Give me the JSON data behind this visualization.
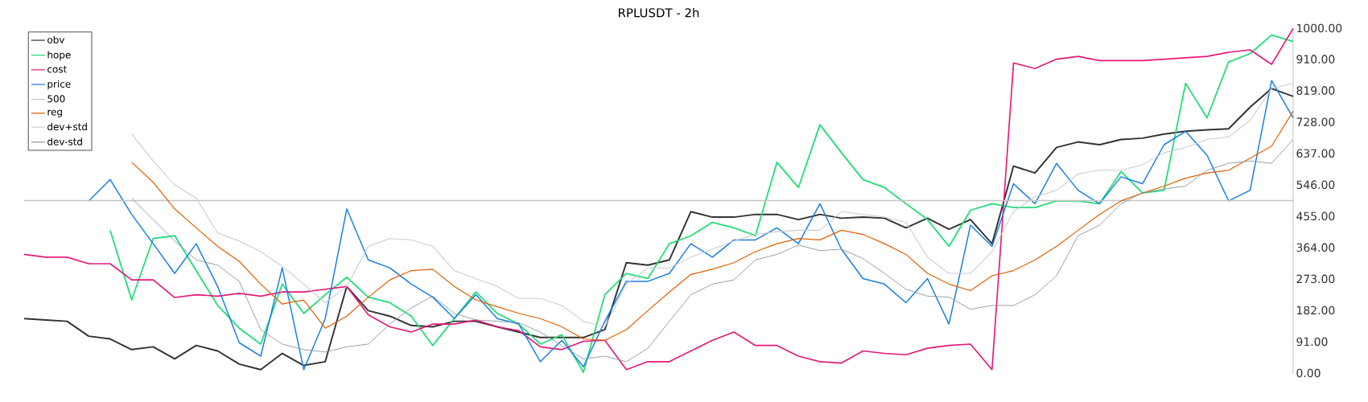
{
  "chart_data": {
    "type": "line",
    "title": "RPLUSDT - 2h",
    "categories": [
      null,
      null,
      null,
      null,
      null,
      null,
      null,
      null,
      null,
      null,
      null,
      null,
      null,
      null,
      null,
      null,
      null,
      null,
      null,
      null,
      null,
      null,
      null,
      null,
      null,
      null,
      null,
      null,
      null,
      null,
      null,
      null,
      null,
      null,
      null,
      null,
      null,
      null,
      null,
      null,
      null,
      null,
      null,
      null,
      null,
      null,
      null,
      null,
      null,
      null,
      null,
      null,
      null,
      null,
      null,
      null,
      null,
      null,
      null,
      null
    ],
    "series": [
      {
        "name": "obv",
        "color": "#333333",
        "values": [
          158,
          154,
          150,
          107,
          99,
          68,
          76,
          41,
          80,
          64,
          26,
          10,
          57,
          22,
          33,
          251,
          181,
          165,
          138,
          134,
          150,
          150,
          134,
          119,
          103,
          103,
          103,
          126,
          320,
          313,
          328,
          468,
          452,
          452,
          460,
          460,
          445,
          460,
          449,
          452,
          449,
          421,
          449,
          417,
          445,
          375,
          600,
          580,
          654,
          670,
          662,
          677,
          681,
          693,
          701,
          705,
          708,
          771,
          825,
          802
        ]
      },
      {
        "name": "hope",
        "color": "#22dd77",
        "values": [
          null,
          null,
          null,
          null,
          414,
          212,
          390,
          398,
          297,
          196,
          130,
          84,
          258,
          173,
          227,
          278,
          220,
          204,
          165,
          80,
          158,
          235,
          173,
          142,
          84,
          111,
          2,
          227,
          289,
          274,
          375,
          398,
          437,
          421,
          398,
          611,
          538,
          720,
          639,
          561,
          538,
          491,
          445,
          367,
          472,
          491,
          480,
          480,
          499,
          499,
          491,
          584,
          522,
          530,
          840,
          740,
          902,
          926,
          980,
          961
        ]
      },
      {
        "name": "cost",
        "color": "#e6197a",
        "values": [
          344,
          336,
          336,
          317,
          317,
          270,
          270,
          219,
          227,
          223,
          231,
          223,
          235,
          235,
          243,
          251,
          169,
          134,
          119,
          142,
          142,
          154,
          134,
          123,
          76,
          68,
          92,
          95,
          10,
          33,
          33,
          64,
          95,
          119,
          80,
          80,
          49,
          33,
          29,
          64,
          57,
          53,
          72,
          80,
          84,
          10,
          899,
          883,
          910,
          918,
          906,
          906,
          906,
          910,
          914,
          918,
          930,
          937,
          895,
          999
        ]
      },
      {
        "name": "price",
        "color": "#1a7fe0",
        "values": [
          null,
          null,
          null,
          499,
          561,
          460,
          375,
          289,
          375,
          251,
          88,
          49,
          305,
          10,
          158,
          476,
          328,
          305,
          258,
          220,
          158,
          227,
          158,
          142,
          33,
          95,
          18,
          150,
          266,
          266,
          289,
          375,
          336,
          386,
          386,
          421,
          375,
          491,
          359,
          274,
          258,
          204,
          274,
          142,
          429,
          367,
          549,
          491,
          608,
          530,
          491,
          569,
          549,
          662,
          701,
          631,
          499,
          530,
          848,
          740
        ]
      },
      {
        "name": "500",
        "color": "#c4c4c4",
        "values": [
          500,
          500,
          500,
          500,
          500,
          500,
          500,
          500,
          500,
          500,
          500,
          500,
          500,
          500,
          500,
          500,
          500,
          500,
          500,
          500,
          500,
          500,
          500,
          500,
          500,
          500,
          500,
          500,
          500,
          500,
          500,
          500,
          500,
          500,
          500,
          500,
          500,
          500,
          500,
          500,
          500,
          500,
          500,
          500,
          500,
          500,
          500,
          500,
          500,
          500,
          500,
          500,
          500,
          500,
          500,
          500,
          500,
          500,
          500,
          500
        ]
      },
      {
        "name": "reg",
        "color": "#e06000",
        "values": [
          null,
          null,
          null,
          null,
          null,
          611,
          553,
          476,
          421,
          367,
          324,
          258,
          200,
          212,
          130,
          165,
          220,
          270,
          297,
          301,
          251,
          212,
          192,
          173,
          158,
          134,
          99,
          95,
          126,
          181,
          235,
          286,
          301,
          320,
          352,
          375,
          390,
          386,
          414,
          402,
          375,
          344,
          289,
          258,
          239,
          282,
          297,
          328,
          367,
          414,
          460,
          499,
          522,
          542,
          565,
          580,
          588,
          623,
          658,
          759
        ]
      },
      {
        "name": "dev+std",
        "color": "#c8ccd2",
        "values": [
          null,
          null,
          null,
          null,
          null,
          693,
          615,
          546,
          507,
          406,
          383,
          352,
          309,
          258,
          204,
          251,
          367,
          390,
          386,
          367,
          297,
          274,
          251,
          216,
          216,
          196,
          150,
          134,
          258,
          305,
          305,
          336,
          359,
          383,
          402,
          410,
          414,
          414,
          468,
          460,
          452,
          437,
          336,
          289,
          289,
          352,
          468,
          511,
          530,
          577,
          588,
          588,
          604,
          639,
          654,
          677,
          685,
          732,
          825,
          840
        ]
      },
      {
        "name": "dev-std",
        "color": "#8a96a3",
        "values": [
          null,
          null,
          null,
          null,
          null,
          507,
          445,
          383,
          328,
          313,
          266,
          126,
          84,
          68,
          61,
          76,
          84,
          142,
          189,
          223,
          173,
          154,
          150,
          146,
          119,
          80,
          41,
          49,
          33,
          72,
          150,
          227,
          258,
          270,
          328,
          344,
          371,
          355,
          359,
          332,
          289,
          243,
          223,
          220,
          185,
          196,
          196,
          227,
          282,
          398,
          429,
          491,
          522,
          534,
          542,
          588,
          608,
          615,
          608,
          677
        ]
      }
    ],
    "ylim": [
      0,
      1000
    ],
    "yticks": [
      {
        "value": 0,
        "label": "0.00"
      },
      {
        "value": 91,
        "label": "91.00"
      },
      {
        "value": 182,
        "label": "182.00"
      },
      {
        "value": 273,
        "label": "273.00"
      },
      {
        "value": 364,
        "label": "364.00"
      },
      {
        "value": 455,
        "label": "455.00"
      },
      {
        "value": 546,
        "label": "546.00"
      },
      {
        "value": 637,
        "label": "637.00"
      },
      {
        "value": 728,
        "label": "728.00"
      },
      {
        "value": 819,
        "label": "819.00"
      },
      {
        "value": 910,
        "label": "910.00"
      },
      {
        "value": 1000,
        "label": "1000.00"
      }
    ],
    "legend": "top left",
    "tick_labels": "y",
    "grid": false,
    "marker": "none",
    "line_style": "solid"
  }
}
